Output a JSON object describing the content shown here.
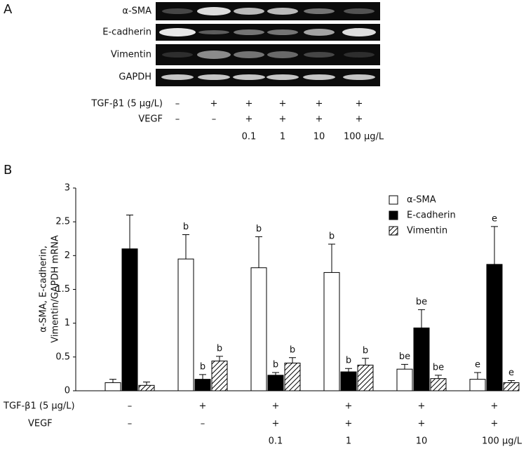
{
  "panel_a": {
    "label": "A",
    "bands": [
      "α-SMA",
      "E-cadherin",
      "Vimentin",
      "GAPDH"
    ],
    "treatments": [
      {
        "label": "TGF-β1 (5 μg/L)",
        "marks": [
          "–",
          "+",
          "+",
          "+",
          "+",
          "+"
        ]
      },
      {
        "label": "VEGF",
        "marks": [
          "–",
          "–",
          "+",
          "+",
          "+",
          "+"
        ]
      }
    ],
    "doses": [
      null,
      null,
      "0.1",
      "1",
      "10",
      "100 μg/L"
    ]
  },
  "chart_data": {
    "type": "bar",
    "panel_label": "B",
    "ylabel": [
      "α-SMA, E-cadherin,",
      "Vimentin/GAPDH mRNA"
    ],
    "ylim": [
      0,
      3
    ],
    "yticks": [
      0,
      0.5,
      1,
      1.5,
      2,
      2.5,
      3
    ],
    "legend": "top-right",
    "series": [
      {
        "name": "α-SMA",
        "color": "#ffffff",
        "values": [
          0.12,
          1.95,
          1.82,
          1.75,
          0.32,
          0.17
        ],
        "errors": [
          0.05,
          0.36,
          0.46,
          0.42,
          0.07,
          0.1
        ],
        "labels": [
          null,
          "b",
          "b",
          "b",
          "be",
          "e"
        ]
      },
      {
        "name": "E-cadherin",
        "color": "#000000",
        "values": [
          2.1,
          0.17,
          0.23,
          0.28,
          0.93,
          1.87
        ],
        "errors": [
          0.5,
          0.07,
          0.04,
          0.05,
          0.27,
          0.56
        ],
        "labels": [
          null,
          "b",
          "b",
          "b",
          "be",
          "e"
        ]
      },
      {
        "name": "Vimentin",
        "color": "hatch",
        "values": [
          0.08,
          0.44,
          0.41,
          0.38,
          0.18,
          0.12
        ],
        "errors": [
          0.05,
          0.07,
          0.08,
          0.1,
          0.05,
          0.03
        ],
        "labels": [
          null,
          "b",
          "b",
          "b",
          "be",
          "e"
        ]
      }
    ],
    "treatments": [
      {
        "label": "TGF-β1 (5 μg/L)",
        "marks": [
          "–",
          "+",
          "+",
          "+",
          "+",
          "+"
        ]
      },
      {
        "label": "VEGF",
        "marks": [
          "–",
          "–",
          "+",
          "+",
          "+",
          "+"
        ]
      }
    ],
    "doses": [
      null,
      null,
      "0.1",
      "1",
      "10",
      "100 μg/L"
    ]
  }
}
